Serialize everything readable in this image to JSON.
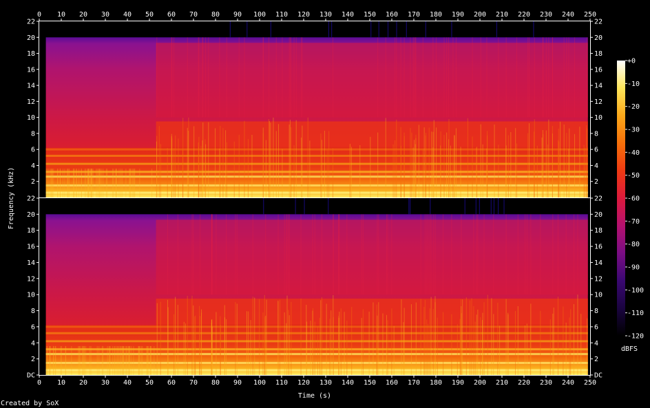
{
  "chart_data": {
    "type": "heatmap",
    "title": "",
    "xlabel": "Time (s)",
    "ylabel": "Frequency (kHz)",
    "credit": "Created by SoX",
    "x_ticks": [
      "0",
      "10",
      "20",
      "30",
      "40",
      "50",
      "60",
      "70",
      "80",
      "90",
      "100",
      "110",
      "120",
      "130",
      "140",
      "150",
      "160",
      "170",
      "180",
      "190",
      "200",
      "210",
      "220",
      "230",
      "240",
      "250"
    ],
    "xlim": [
      0,
      250
    ],
    "channels": [
      {
        "name": "",
        "y_ticks": [
          "22",
          "20",
          "18",
          "16",
          "14",
          "12",
          "10",
          "8",
          "6",
          "4",
          "2"
        ],
        "ylim": [
          0,
          22
        ]
      },
      {
        "name": "",
        "y_ticks": [
          "22",
          "20",
          "18",
          "16",
          "14",
          "12",
          "10",
          "8",
          "6",
          "4",
          "2",
          "DC"
        ],
        "ylim": [
          0,
          22
        ]
      }
    ],
    "colorbar": {
      "label": "dBFS",
      "ticks": [
        "+0",
        "-10",
        "-20",
        "-30",
        "-40",
        "-50",
        "-60",
        "-70",
        "-80",
        "-90",
        "-100",
        "-110",
        "-120"
      ],
      "range": [
        -120,
        0
      ],
      "colors": [
        "#000000",
        "#1a0440",
        "#3a0872",
        "#7a0d84",
        "#b5116f",
        "#dc1a3c",
        "#ef3a12",
        "#f6700a",
        "#fba81a",
        "#fde55a",
        "#ffffff"
      ]
    },
    "content_start_s": 3,
    "content_end_s": 249,
    "content_top_khz": 20,
    "segments": [
      {
        "from_s": 3,
        "to_s": 53,
        "level": "quiet"
      },
      {
        "from_s": 53,
        "to_s": 249,
        "level": "loud"
      }
    ]
  }
}
